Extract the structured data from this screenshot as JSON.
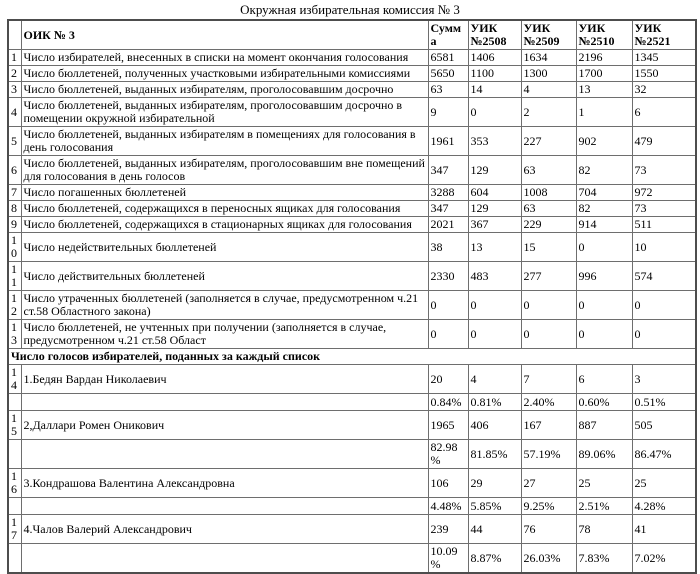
{
  "title": "Окружная избирательная комиссия № 3",
  "colors": {
    "background": "#ffffff",
    "text": "#000000",
    "border": "#6e6e6e"
  },
  "table": {
    "header": {
      "num": "",
      "name": "ОИК № 3",
      "sum": "Сумма",
      "uik": [
        "УИК №2508",
        "УИК №2509",
        "УИК №2510",
        "УИК №2521"
      ]
    },
    "rows": [
      {
        "num": "1",
        "label": "Число избирателей, внесенных в списки на момент окончания голосования",
        "values": [
          "6581",
          "1406",
          "1634",
          "2196",
          "1345"
        ]
      },
      {
        "num": "2",
        "label": "Число бюллетеней, полученных участковыми избирательными комиссиями",
        "values": [
          "5650",
          "1100",
          "1300",
          "1700",
          "1550"
        ]
      },
      {
        "num": "3",
        "label": "Число бюллетеней, выданных избирателям, проголосовавшим досрочно",
        "values": [
          "63",
          "14",
          "4",
          "13",
          "32"
        ]
      },
      {
        "num": "4",
        "label": "Число бюллетеней, выданных избирателям, проголосовавшим досрочно в помещении окружной избирательной",
        "values": [
          "9",
          "0",
          "2",
          "1",
          "6"
        ]
      },
      {
        "num": "5",
        "label": "Число бюллетеней, выданных избирателям в помещениях для голосования в день голосования",
        "values": [
          "1961",
          "353",
          "227",
          "902",
          "479"
        ]
      },
      {
        "num": "6",
        "label": "Число бюллетеней, выданных избирателям, проголосовавшим вне помещений для голосования в день голосов",
        "values": [
          "347",
          "129",
          "63",
          "82",
          "73"
        ]
      },
      {
        "num": "7",
        "label": "Число погашенных бюллетеней",
        "values": [
          "3288",
          "604",
          "1008",
          "704",
          "972"
        ]
      },
      {
        "num": "8",
        "label": "Число бюллетеней, содержащихся в переносных ящиках для голосования",
        "values": [
          "347",
          "129",
          "63",
          "82",
          "73"
        ]
      },
      {
        "num": "9",
        "label": "Число бюллетеней, содержащихся в стационарных ящиках для голосования",
        "values": [
          "2021",
          "367",
          "229",
          "914",
          "511"
        ]
      },
      {
        "num": "10",
        "label": "Число недействительных бюллетеней",
        "values": [
          "38",
          "13",
          "15",
          "0",
          "10"
        ]
      },
      {
        "num": "11",
        "label": "Число действительных бюллетеней",
        "values": [
          "2330",
          "483",
          "277",
          "996",
          "574"
        ]
      },
      {
        "num": "12",
        "label": "Число утраченных бюллетеней (заполняется в случае, предусмотренном ч.21 ст.58 Областного закона)",
        "values": [
          "0",
          "0",
          "0",
          "0",
          "0"
        ]
      },
      {
        "num": "13",
        "label": "Число бюллетеней, не учтенных при получении (заполняется в случае, предусмотренном ч.21 ст.58 Област",
        "values": [
          "0",
          "0",
          "0",
          "0",
          "0"
        ]
      }
    ],
    "section_header": "Число голосов избирателей, поданных за каждый список",
    "candidates": [
      {
        "num": "14",
        "name": "1.Бедян Вардан Николаевич",
        "votes": [
          "20",
          "4",
          "7",
          "6",
          "3"
        ],
        "percents": [
          "0.84%",
          "0.81%",
          "2.40%",
          "0.60%",
          "0.51%"
        ]
      },
      {
        "num": "15",
        "name": "2,Даллари Ромен Оникович",
        "votes": [
          "1965",
          "406",
          "167",
          "887",
          "505"
        ],
        "percents": [
          "82.98%",
          "81.85%",
          "57.19%",
          "89.06%",
          "86.47%"
        ]
      },
      {
        "num": "16",
        "name": "3.Кондрашова Валентина Александровна",
        "votes": [
          "106",
          "29",
          "27",
          "25",
          "25"
        ],
        "percents": [
          "4.48%",
          "5.85%",
          "9.25%",
          "2.51%",
          "4.28%"
        ]
      },
      {
        "num": "17",
        "name": "4.Чалов Валерий Александрович",
        "votes": [
          "239",
          "44",
          "76",
          "78",
          "41"
        ],
        "percents": [
          "10.09%",
          "8.87%",
          "26.03%",
          "7.83%",
          "7.02%"
        ]
      }
    ]
  }
}
